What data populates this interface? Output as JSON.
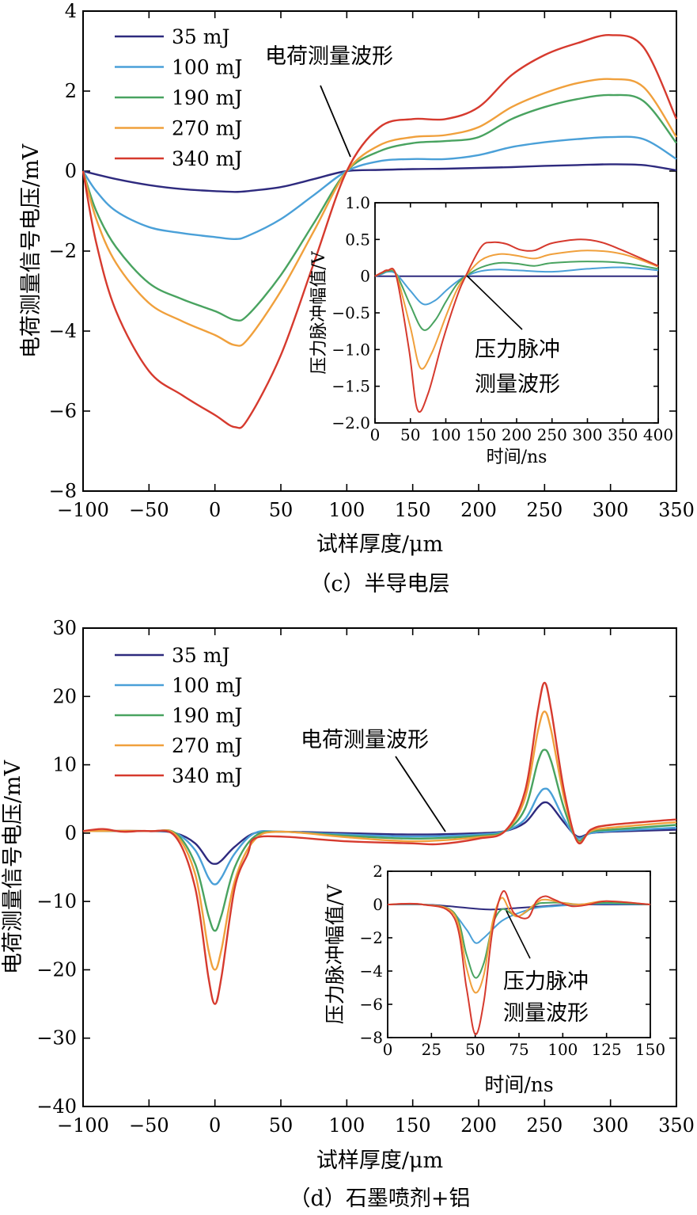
{
  "chart_data": [
    {
      "panel": "c",
      "type": "line",
      "caption": "（c）半导电层",
      "xlabel": "试样厚度/μm",
      "ylabel": "电荷测量信号电压/mV",
      "xlim": [
        -100,
        350
      ],
      "ylim": [
        -8,
        4
      ],
      "xticks": [
        -100,
        -50,
        0,
        50,
        100,
        150,
        200,
        250,
        300,
        350
      ],
      "yticks": [
        -8,
        -6,
        -4,
        -2,
        0,
        2,
        4
      ],
      "xtick_labels": [
        "−100",
        "−50",
        "0",
        "50",
        "100",
        "150",
        "200",
        "250",
        "300",
        "350"
      ],
      "ytick_labels": [
        "−8",
        "−6",
        "−4",
        "−2",
        "0",
        "2",
        "4"
      ],
      "legend_placement": "top-left",
      "annotation": "电荷测量波形",
      "series": [
        {
          "name": "35 mJ",
          "color": "#2e2a7e",
          "x": [
            -100,
            -75,
            -50,
            -25,
            0,
            15,
            25,
            50,
            75,
            100,
            125,
            150,
            175,
            200,
            225,
            250,
            275,
            300,
            325,
            350
          ],
          "y": [
            0,
            -0.2,
            -0.35,
            -0.45,
            -0.5,
            -0.52,
            -0.5,
            -0.4,
            -0.2,
            0,
            0.03,
            0.05,
            0.06,
            0.08,
            0.1,
            0.13,
            0.15,
            0.17,
            0.15,
            0.02
          ]
        },
        {
          "name": "100 mJ",
          "color": "#4aa0d8",
          "x": [
            -100,
            -90,
            -75,
            -50,
            -25,
            0,
            15,
            25,
            50,
            75,
            100,
            125,
            150,
            175,
            200,
            225,
            250,
            275,
            300,
            325,
            350
          ],
          "y": [
            0,
            -0.5,
            -1.0,
            -1.4,
            -1.55,
            -1.65,
            -1.7,
            -1.62,
            -1.2,
            -0.6,
            0,
            0.25,
            0.3,
            0.3,
            0.4,
            0.6,
            0.72,
            0.8,
            0.85,
            0.8,
            0.3
          ]
        },
        {
          "name": "190 mJ",
          "color": "#49a360",
          "x": [
            -100,
            -90,
            -75,
            -50,
            -25,
            0,
            15,
            25,
            50,
            75,
            100,
            125,
            150,
            175,
            200,
            225,
            250,
            275,
            300,
            325,
            350
          ],
          "y": [
            0,
            -1.0,
            -1.9,
            -2.8,
            -3.2,
            -3.5,
            -3.72,
            -3.6,
            -2.6,
            -1.3,
            0,
            0.5,
            0.7,
            0.75,
            0.85,
            1.3,
            1.6,
            1.8,
            1.9,
            1.75,
            0.7
          ]
        },
        {
          "name": "270 mJ",
          "color": "#f0a03c",
          "x": [
            -100,
            -90,
            -75,
            -50,
            -25,
            0,
            15,
            25,
            50,
            75,
            100,
            125,
            150,
            175,
            200,
            225,
            250,
            275,
            300,
            325,
            350
          ],
          "y": [
            0,
            -1.2,
            -2.3,
            -3.3,
            -3.75,
            -4.1,
            -4.35,
            -4.2,
            -3.0,
            -1.5,
            0,
            0.65,
            0.85,
            0.9,
            1.1,
            1.6,
            1.95,
            2.2,
            2.3,
            2.1,
            0.85
          ]
        },
        {
          "name": "340 mJ",
          "color": "#d63a2e",
          "x": [
            -100,
            -90,
            -75,
            -50,
            -25,
            0,
            15,
            25,
            50,
            75,
            100,
            125,
            150,
            175,
            200,
            225,
            250,
            275,
            300,
            325,
            350
          ],
          "y": [
            0,
            -1.8,
            -3.5,
            -5.0,
            -5.6,
            -6.1,
            -6.4,
            -6.2,
            -4.6,
            -2.3,
            0,
            1.1,
            1.3,
            1.3,
            1.6,
            2.4,
            2.9,
            3.2,
            3.4,
            3.1,
            1.3
          ]
        }
      ],
      "inset": {
        "xlabel": "时间/ns",
        "ylabel": "压力脉冲幅值/V",
        "xlim": [
          0,
          400
        ],
        "ylim": [
          -2.0,
          1.0
        ],
        "xticks": [
          0,
          50,
          100,
          150,
          200,
          250,
          300,
          350,
          400
        ],
        "yticks": [
          -2.0,
          -1.5,
          -1.0,
          -0.5,
          0,
          0.5,
          1.0
        ],
        "xtick_labels": [
          "0",
          "50",
          "100",
          "150",
          "200",
          "250",
          "300",
          "350",
          "400"
        ],
        "ytick_labels": [
          "−2.0",
          "−1.5",
          "−1.0",
          "−0.5",
          "0",
          "0.5",
          "1.0"
        ],
        "annotation_lines": [
          "压力脉冲",
          "测量波形"
        ],
        "series": [
          {
            "name": "35 mJ",
            "color": "#2e2a7e",
            "x": [
              0,
              400
            ],
            "y": [
              0,
              0
            ]
          },
          {
            "name": "100 mJ",
            "color": "#4aa0d8",
            "x": [
              0,
              10,
              18,
              30,
              50,
              68,
              85,
              100,
              115,
              128,
              150,
              175,
              200,
              250,
              300,
              350,
              400
            ],
            "y": [
              0,
              0.03,
              0.06,
              0.03,
              -0.2,
              -0.38,
              -0.33,
              -0.2,
              -0.08,
              0,
              0.07,
              0.09,
              0.08,
              0.06,
              0.1,
              0.12,
              0.08
            ]
          },
          {
            "name": "190 mJ",
            "color": "#49a360",
            "x": [
              0,
              10,
              18,
              30,
              50,
              68,
              85,
              100,
              115,
              128,
              150,
              175,
              200,
              225,
              250,
              300,
              350,
              400
            ],
            "y": [
              0,
              0.04,
              0.07,
              0.03,
              -0.4,
              -0.73,
              -0.6,
              -0.35,
              -0.12,
              0,
              0.12,
              0.18,
              0.17,
              0.14,
              0.18,
              0.2,
              0.18,
              0.1
            ]
          },
          {
            "name": "270 mJ",
            "color": "#f0a03c",
            "x": [
              0,
              10,
              18,
              30,
              50,
              64,
              80,
              100,
              115,
              128,
              150,
              175,
              200,
              225,
              250,
              300,
              350,
              400
            ],
            "y": [
              0,
              0.05,
              0.08,
              0.02,
              -0.7,
              -1.25,
              -1.05,
              -0.55,
              -0.2,
              0,
              0.22,
              0.3,
              0.28,
              0.24,
              0.3,
              0.35,
              0.3,
              0.13
            ]
          },
          {
            "name": "340 mJ",
            "color": "#d63a2e",
            "x": [
              0,
              10,
              18,
              30,
              48,
              60,
              75,
              95,
              115,
              128,
              150,
              165,
              185,
              205,
              225,
              250,
              290,
              320,
              350,
              400
            ],
            "y": [
              0,
              0.05,
              0.08,
              0.0,
              -1.0,
              -1.82,
              -1.6,
              -0.9,
              -0.3,
              0.0,
              0.4,
              0.46,
              0.44,
              0.36,
              0.35,
              0.45,
              0.5,
              0.46,
              0.35,
              0.14
            ]
          }
        ]
      }
    },
    {
      "panel": "d",
      "type": "line",
      "caption": "（d）石墨喷剂+铝",
      "xlabel": "试样厚度/μm",
      "ylabel": "电荷测量信号电压/mV",
      "xlim": [
        -100,
        350
      ],
      "ylim": [
        -40,
        30
      ],
      "xticks": [
        -100,
        -50,
        0,
        50,
        100,
        150,
        200,
        250,
        300,
        350
      ],
      "yticks": [
        -40,
        -30,
        -20,
        -10,
        0,
        10,
        20,
        30
      ],
      "xtick_labels": [
        "−100",
        "−50",
        "0",
        "50",
        "100",
        "150",
        "200",
        "250",
        "300",
        "350"
      ],
      "ytick_labels": [
        "−40",
        "−30",
        "−20",
        "−10",
        "0",
        "10",
        "20",
        "30"
      ],
      "legend_placement": "top-left",
      "annotation": "电荷测量波形",
      "series": [
        {
          "name": "35 mJ",
          "color": "#2e2a7e",
          "x": [
            -100,
            -50,
            -30,
            -15,
            -5,
            0,
            5,
            15,
            30,
            50,
            100,
            150,
            200,
            220,
            235,
            245,
            250,
            255,
            265,
            275,
            285,
            300,
            350
          ],
          "y": [
            0.3,
            0.3,
            0,
            -1.5,
            -4,
            -4.5,
            -4,
            -2,
            0,
            0.2,
            0,
            -0.2,
            0,
            0.3,
            1.5,
            3.8,
            4.5,
            4,
            1.5,
            -0.5,
            0,
            0.2,
            0.5
          ]
        },
        {
          "name": "100 mJ",
          "color": "#4aa0d8",
          "x": [
            -100,
            -50,
            -30,
            -15,
            -5,
            0,
            5,
            15,
            30,
            50,
            100,
            150,
            200,
            220,
            235,
            245,
            250,
            255,
            265,
            275,
            285,
            300,
            350
          ],
          "y": [
            0.3,
            0.3,
            0,
            -2.5,
            -6.5,
            -7.5,
            -6.5,
            -3,
            0,
            0.2,
            -0.2,
            -0.5,
            -0.2,
            0.3,
            2,
            5.5,
            6.5,
            5.8,
            2,
            -0.7,
            0,
            0.3,
            0.8
          ]
        },
        {
          "name": "190 mJ",
          "color": "#49a360",
          "x": [
            -100,
            -50,
            -30,
            -15,
            -5,
            0,
            5,
            15,
            30,
            50,
            100,
            150,
            200,
            220,
            235,
            245,
            250,
            255,
            265,
            275,
            285,
            300,
            350
          ],
          "y": [
            0.3,
            0.3,
            0,
            -4.5,
            -12,
            -14.3,
            -12,
            -5,
            -0.5,
            0.2,
            -0.4,
            -0.8,
            -0.4,
            0.3,
            3.5,
            10.5,
            12.2,
            10.5,
            3.5,
            -1,
            0.2,
            0.5,
            1.2
          ]
        },
        {
          "name": "270 mJ",
          "color": "#f0a03c",
          "x": [
            -100,
            -50,
            -30,
            -15,
            -5,
            0,
            5,
            15,
            30,
            50,
            100,
            150,
            200,
            220,
            235,
            245,
            250,
            255,
            265,
            275,
            285,
            300,
            350
          ],
          "y": [
            0.3,
            0.3,
            -0.2,
            -6,
            -17,
            -20,
            -17,
            -7,
            -1,
            0.2,
            -0.6,
            -1.2,
            -0.6,
            0.3,
            5,
            15,
            17.8,
            15,
            5,
            -1.2,
            0.3,
            0.8,
            1.6
          ]
        },
        {
          "name": "340 mJ",
          "color": "#d63a2e",
          "x": [
            -100,
            -85,
            -70,
            -50,
            -30,
            -15,
            -5,
            0,
            5,
            15,
            25,
            30,
            50,
            100,
            150,
            170,
            200,
            220,
            235,
            245,
            250,
            255,
            265,
            275,
            285,
            300,
            350
          ],
          "y": [
            0.3,
            0.6,
            0.2,
            0.3,
            -0.5,
            -8,
            -21,
            -25,
            -21,
            -8,
            -3,
            -0.8,
            -0.5,
            -1.2,
            -1.5,
            -1.6,
            -0.8,
            0.3,
            6,
            18,
            22,
            18,
            6,
            -1.3,
            0.5,
            1.2,
            2
          ]
        }
      ],
      "inset": {
        "xlabel": "时间/ns",
        "ylabel": "压力脉冲幅值/V",
        "xlim": [
          0,
          150
        ],
        "ylim": [
          -8,
          2
        ],
        "xticks": [
          0,
          25,
          50,
          75,
          100,
          125,
          150
        ],
        "yticks": [
          -8,
          -6,
          -4,
          -2,
          0,
          2
        ],
        "xtick_labels": [
          "0",
          "25",
          "50",
          "75",
          "100",
          "125",
          "150"
        ],
        "ytick_labels": [
          "−8",
          "−6",
          "−4",
          "−2",
          "0",
          "2"
        ],
        "annotation_lines": [
          "压力脉冲",
          "测量波形"
        ],
        "series": [
          {
            "name": "35 mJ",
            "color": "#2e2a7e",
            "x": [
              0,
              20,
              35,
              50,
              60,
              75,
              90,
              105,
              120,
              150
            ],
            "y": [
              0,
              0,
              -0.1,
              -0.25,
              -0.3,
              -0.2,
              -0.1,
              0,
              0,
              0
            ]
          },
          {
            "name": "100 mJ",
            "color": "#4aa0d8",
            "x": [
              0,
              20,
              35,
              45,
              50,
              55,
              65,
              75,
              85,
              95,
              110,
              125,
              150
            ],
            "y": [
              0,
              0,
              -0.3,
              -1.5,
              -2.3,
              -2.0,
              -1.0,
              -0.5,
              -0.2,
              -0.1,
              0,
              0.05,
              0
            ]
          },
          {
            "name": "190 mJ",
            "color": "#49a360",
            "x": [
              0,
              20,
              38,
              45,
              50,
              55,
              60,
              65,
              70,
              75,
              85,
              90,
              100,
              110,
              125,
              150
            ],
            "y": [
              0,
              0,
              -0.5,
              -3,
              -4.4,
              -3.5,
              -1.2,
              -0.3,
              -0.5,
              -0.7,
              0,
              0.1,
              0.1,
              0,
              0.1,
              0
            ]
          },
          {
            "name": "270 mJ",
            "color": "#f0a03c",
            "x": [
              0,
              20,
              38,
              45,
              50,
              55,
              60,
              65,
              70,
              75,
              85,
              90,
              100,
              110,
              125,
              150
            ],
            "y": [
              0,
              0,
              -0.6,
              -3.8,
              -5.3,
              -4.2,
              -1,
              0.4,
              -0.4,
              -0.7,
              0.1,
              0.3,
              0.1,
              0,
              0.2,
              0
            ]
          },
          {
            "name": "340 mJ",
            "color": "#d63a2e",
            "x": [
              0,
              20,
              38,
              45,
              50,
              55,
              60,
              66,
              72,
              80,
              85,
              90,
              95,
              105,
              115,
              125,
              150
            ],
            "y": [
              0,
              0,
              -0.8,
              -5,
              -7.8,
              -5.8,
              -1.5,
              0.8,
              -0.5,
              -0.8,
              0.2,
              0.5,
              0.3,
              -0.1,
              0,
              0.2,
              0
            ]
          }
        ]
      }
    }
  ]
}
